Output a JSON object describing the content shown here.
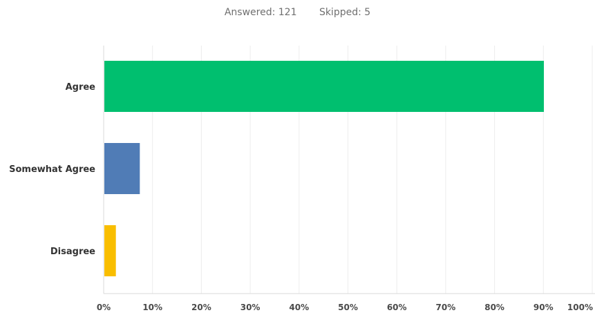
{
  "header": {
    "answered": "Answered: 121",
    "skipped": "Skipped: 5"
  },
  "chart_data": {
    "type": "bar",
    "orientation": "horizontal",
    "categories": [
      "Agree",
      "Somewhat Agree",
      "Disagree"
    ],
    "values": [
      90.1,
      7.4,
      2.5
    ],
    "colors": [
      "#00bf6f",
      "#507cb6",
      "#f9be00"
    ],
    "xlim": [
      0,
      100
    ],
    "x_ticks": [
      0,
      10,
      20,
      30,
      40,
      50,
      60,
      70,
      80,
      90,
      100
    ],
    "x_tick_labels": [
      "0%",
      "10%",
      "20%",
      "30%",
      "40%",
      "50%",
      "60%",
      "70%",
      "80%",
      "90%",
      "100%"
    ],
    "grid": true,
    "legend": "none"
  }
}
